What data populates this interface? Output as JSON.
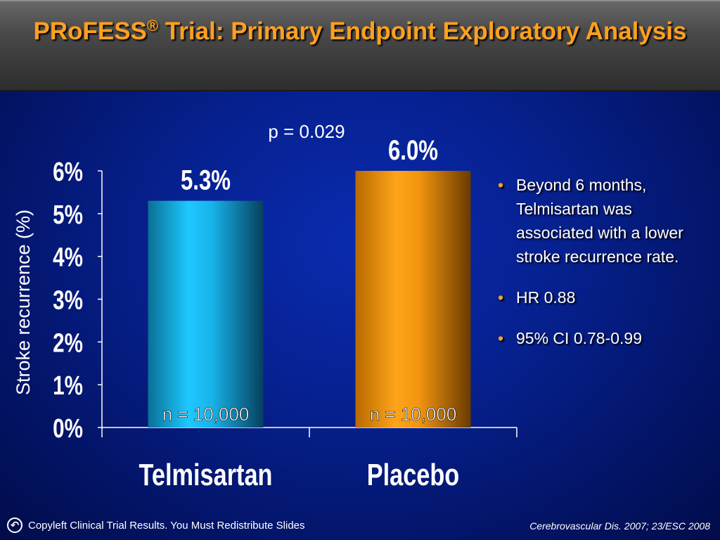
{
  "header": {
    "title_prefix": "PRoFESS",
    "title_reg": "®",
    "title_rest": " Trial: Primary Endpoint Exploratory Analysis"
  },
  "chart_data": {
    "type": "bar",
    "categories": [
      "Telmisartan",
      "Placebo"
    ],
    "values": [
      5.3,
      6.0
    ],
    "value_labels": [
      "5.3%",
      "6.0%"
    ],
    "sample_labels": [
      "n = 10,000",
      "n = 10,000"
    ],
    "ylabel": "Stroke recurrence (%)",
    "ylim": [
      0,
      6
    ],
    "yticks": [
      "0%",
      "1%",
      "2%",
      "3%",
      "4%",
      "5%",
      "6%"
    ],
    "annotation": "p = 0.029",
    "colors": [
      "#12b8f0",
      "#ff9a10"
    ],
    "grid": false
  },
  "bullets": [
    "Beyond 6 months, Telmisartan was associated with a lower stroke recurrence rate.",
    "HR 0.88",
    "95% CI 0.78-0.99"
  ],
  "footer": {
    "copyleft_icon": "copyleft-icon",
    "left_text": "Copyleft Clinical Trial Results. You Must Redistribute Slides",
    "right_text": "Cerebrovascular Dis. 2007; 23/ESC 2008"
  }
}
